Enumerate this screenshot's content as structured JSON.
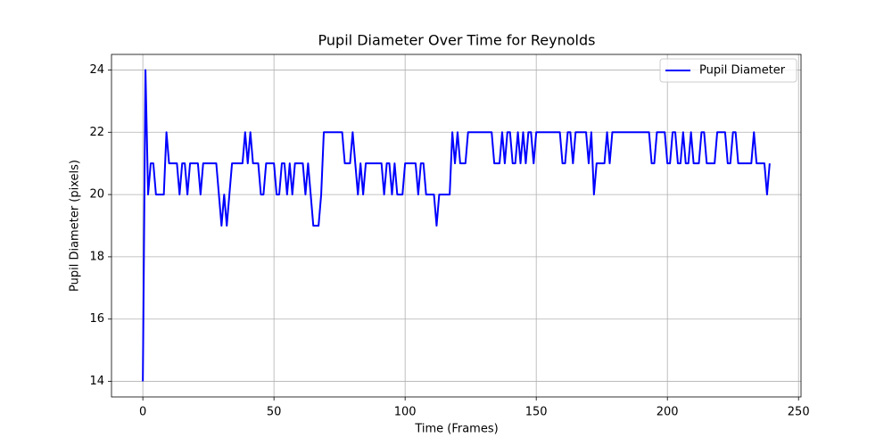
{
  "chart_data": {
    "type": "line",
    "title": "Pupil Diameter Over Time for Reynolds",
    "x_label": "Time (Frames)",
    "y_label": "Pupil Diameter (pixels)",
    "x": [
      0,
      1,
      2,
      3,
      4,
      5,
      6,
      7,
      8,
      9,
      10,
      11,
      12,
      13,
      14,
      15,
      16,
      17,
      18,
      19,
      20,
      21,
      22,
      23,
      24,
      25,
      26,
      27,
      28,
      29,
      30,
      31,
      32,
      33,
      34,
      35,
      36,
      37,
      38,
      39,
      40,
      41,
      42,
      43,
      44,
      45,
      46,
      47,
      48,
      49,
      50,
      51,
      52,
      53,
      54,
      55,
      56,
      57,
      58,
      59,
      60,
      61,
      62,
      63,
      64,
      65,
      66,
      67,
      68,
      69,
      70,
      71,
      72,
      73,
      74,
      75,
      76,
      77,
      78,
      79,
      80,
      81,
      82,
      83,
      84,
      85,
      86,
      87,
      88,
      89,
      90,
      91,
      92,
      93,
      94,
      95,
      96,
      97,
      98,
      99,
      100,
      101,
      102,
      103,
      104,
      105,
      106,
      107,
      108,
      109,
      110,
      111,
      112,
      113,
      114,
      115,
      116,
      117,
      118,
      119,
      120,
      121,
      122,
      123,
      124,
      125,
      126,
      127,
      128,
      129,
      130,
      131,
      132,
      133,
      134,
      135,
      136,
      137,
      138,
      139,
      140,
      141,
      142,
      143,
      144,
      145,
      146,
      147,
      148,
      149,
      150,
      151,
      152,
      153,
      154,
      155,
      156,
      157,
      158,
      159,
      160,
      161,
      162,
      163,
      164,
      165,
      166,
      167,
      168,
      169,
      170,
      171,
      172,
      173,
      174,
      175,
      176,
      177,
      178,
      179,
      180,
      181,
      182,
      183,
      184,
      185,
      186,
      187,
      188,
      189,
      190,
      191,
      192,
      193,
      194,
      195,
      196,
      197,
      198,
      199,
      200,
      201,
      202,
      203,
      204,
      205,
      206,
      207,
      208,
      209,
      210,
      211,
      212,
      213,
      214,
      215,
      216,
      217,
      218,
      219,
      220,
      221,
      222,
      223,
      224,
      225,
      226,
      227,
      228,
      229,
      230,
      231,
      232,
      233,
      234,
      235,
      236,
      237,
      238,
      239
    ],
    "series": [
      {
        "name": "Pupil Diameter",
        "color": "#0000ff",
        "values": [
          14,
          24,
          20,
          21,
          21,
          20,
          20,
          20,
          20,
          22,
          21,
          21,
          21,
          21,
          20,
          21,
          21,
          20,
          21,
          21,
          21,
          21,
          20,
          21,
          21,
          21,
          21,
          21,
          21,
          20,
          19,
          20,
          19,
          20,
          21,
          21,
          21,
          21,
          21,
          22,
          21,
          22,
          21,
          21,
          21,
          20,
          20,
          21,
          21,
          21,
          21,
          20,
          20,
          21,
          21,
          20,
          21,
          20,
          21,
          21,
          21,
          21,
          20,
          21,
          20,
          19,
          19,
          19,
          20,
          22,
          22,
          22,
          22,
          22,
          22,
          22,
          22,
          21,
          21,
          21,
          22,
          21,
          20,
          21,
          20,
          21,
          21,
          21,
          21,
          21,
          21,
          21,
          20,
          21,
          21,
          20,
          21,
          20,
          20,
          20,
          21,
          21,
          21,
          21,
          21,
          20,
          21,
          21,
          20,
          20,
          20,
          20,
          19,
          20,
          20,
          20,
          20,
          20,
          22,
          21,
          22,
          21,
          21,
          21,
          22,
          22,
          22,
          22,
          22,
          22,
          22,
          22,
          22,
          22,
          21,
          21,
          21,
          22,
          21,
          22,
          22,
          21,
          21,
          22,
          21,
          22,
          21,
          22,
          22,
          21,
          22,
          22,
          22,
          22,
          22,
          22,
          22,
          22,
          22,
          22,
          21,
          21,
          22,
          22,
          21,
          22,
          22,
          22,
          22,
          22,
          21,
          22,
          20,
          21,
          21,
          21,
          21,
          22,
          21,
          22,
          22,
          22,
          22,
          22,
          22,
          22,
          22,
          22,
          22,
          22,
          22,
          22,
          22,
          22,
          21,
          21,
          22,
          22,
          22,
          22,
          21,
          21,
          22,
          22,
          21,
          21,
          22,
          21,
          21,
          22,
          21,
          21,
          21,
          22,
          22,
          21,
          21,
          21,
          21,
          22,
          22,
          22,
          22,
          21,
          21,
          22,
          22,
          21,
          21,
          21,
          21,
          21,
          21,
          22,
          21,
          21,
          21,
          21,
          20,
          21
        ]
      }
    ],
    "xlim": [
      -11.95,
      250.95
    ],
    "ylim": [
      13.5,
      24.5
    ],
    "xticks": [
      0,
      50,
      100,
      150,
      200,
      250
    ],
    "yticks": [
      14,
      16,
      18,
      20,
      22,
      24
    ],
    "grid": true,
    "legend": "upper right"
  }
}
